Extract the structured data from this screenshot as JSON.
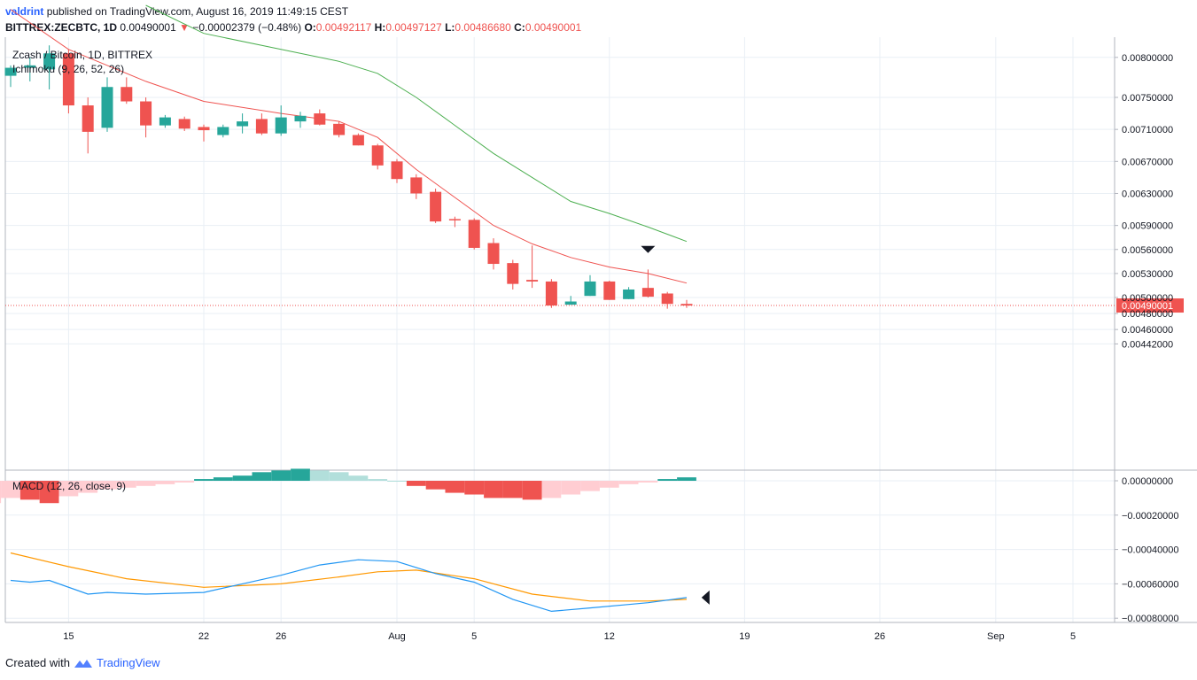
{
  "header": {
    "user": "valdrint",
    "published": "published on TradingView.com, August 16, 2019 11:49:15 CEST",
    "symbol": "BITTREX:ZECBTC, 1D",
    "last": "0.00490001",
    "change": "−0.00002379 (−0.48%)",
    "o_label": "O:",
    "o": "0.00492117",
    "h_label": "H:",
    "h": "0.00497127",
    "l_label": "L:",
    "l": "0.00486680",
    "c_label": "C:",
    "c": "0.00490001"
  },
  "footer": {
    "created": "Created with",
    "brand": "TradingView"
  },
  "colors": {
    "up": "#26a69a",
    "down": "#ef5350",
    "hist_up_strong": "#26a69a",
    "hist_up_weak": "#b2dfdb",
    "hist_down_strong": "#ef5350",
    "hist_down_weak": "#ffcdd2",
    "macd_line": "#2196f3",
    "signal_line": "#ff9800",
    "ichimoku_base": "#ef5350",
    "ichimoku_span": "#4caf50",
    "grid": "#e9eff5",
    "axis_text": "#131722",
    "price_tag": "#ef5350"
  },
  "chart_data": [
    {
      "type": "candlestick",
      "title": "Zcash / Bitcoin, 1D, BITTREX",
      "indicator_label": "Ichimoku (9, 26, 52, 26)",
      "last_price_label": "0.00490001",
      "last_price": 0.00490001,
      "y_ticks": [
        "0.00800000",
        "0.00750000",
        "0.00710000",
        "0.00670000",
        "0.00630000",
        "0.00590000",
        "0.00560000",
        "0.00530000",
        "0.00500000",
        "0.00480000",
        "0.00460000",
        "0.00442000"
      ],
      "y_tick_values": [
        0.008,
        0.0075,
        0.0071,
        0.0067,
        0.0063,
        0.0059,
        0.0056,
        0.0053,
        0.005,
        0.0048,
        0.0046,
        0.00442
      ],
      "x_ticks": [
        "15",
        "22",
        "26",
        "Aug",
        "5",
        "12",
        "19",
        "26",
        "Sep",
        "5"
      ],
      "x_tick_days": [
        15,
        22,
        26,
        32,
        36,
        43,
        50,
        57,
        63,
        67
      ],
      "first_day": 12,
      "candles": [
        {
          "d": 12,
          "o": 0.00777,
          "h": 0.0079,
          "l": 0.00763,
          "c": 0.00787
        },
        {
          "d": 13,
          "o": 0.00787,
          "h": 0.008,
          "l": 0.0077,
          "c": 0.0079
        },
        {
          "d": 14,
          "o": 0.00785,
          "h": 0.00815,
          "l": 0.0076,
          "c": 0.00805
        },
        {
          "d": 15,
          "o": 0.00805,
          "h": 0.0081,
          "l": 0.0073,
          "c": 0.0074
        },
        {
          "d": 16,
          "o": 0.0074,
          "h": 0.0075,
          "l": 0.0068,
          "c": 0.00707
        },
        {
          "d": 17,
          "o": 0.00712,
          "h": 0.00775,
          "l": 0.00707,
          "c": 0.00763
        },
        {
          "d": 18,
          "o": 0.00763,
          "h": 0.00775,
          "l": 0.00742,
          "c": 0.00745
        },
        {
          "d": 19,
          "o": 0.00745,
          "h": 0.0075,
          "l": 0.007,
          "c": 0.00715
        },
        {
          "d": 20,
          "o": 0.00715,
          "h": 0.00728,
          "l": 0.00712,
          "c": 0.00725
        },
        {
          "d": 21,
          "o": 0.00723,
          "h": 0.00726,
          "l": 0.00708,
          "c": 0.00711
        },
        {
          "d": 22,
          "o": 0.00713,
          "h": 0.00716,
          "l": 0.00695,
          "c": 0.00709
        },
        {
          "d": 23,
          "o": 0.00703,
          "h": 0.00716,
          "l": 0.007,
          "c": 0.00713
        },
        {
          "d": 24,
          "o": 0.00714,
          "h": 0.0073,
          "l": 0.00705,
          "c": 0.0072
        },
        {
          "d": 25,
          "o": 0.00723,
          "h": 0.0073,
          "l": 0.00703,
          "c": 0.00705
        },
        {
          "d": 26,
          "o": 0.00705,
          "h": 0.0074,
          "l": 0.00702,
          "c": 0.00725
        },
        {
          "d": 27,
          "o": 0.0072,
          "h": 0.00732,
          "l": 0.00712,
          "c": 0.00727
        },
        {
          "d": 28,
          "o": 0.0073,
          "h": 0.00735,
          "l": 0.00715,
          "c": 0.00716
        },
        {
          "d": 29,
          "o": 0.00717,
          "h": 0.0072,
          "l": 0.007,
          "c": 0.00703
        },
        {
          "d": 30,
          "o": 0.00703,
          "h": 0.00705,
          "l": 0.0069,
          "c": 0.0069
        },
        {
          "d": 31,
          "o": 0.0069,
          "h": 0.00692,
          "l": 0.0066,
          "c": 0.00665
        },
        {
          "d": 32,
          "o": 0.0067,
          "h": 0.00673,
          "l": 0.00643,
          "c": 0.00648
        },
        {
          "d": 33,
          "o": 0.0065,
          "h": 0.00654,
          "l": 0.00623,
          "c": 0.0063
        },
        {
          "d": 34,
          "o": 0.00632,
          "h": 0.00636,
          "l": 0.00593,
          "c": 0.00595
        },
        {
          "d": 35,
          "o": 0.00598,
          "h": 0.00601,
          "l": 0.00588,
          "c": 0.00597
        },
        {
          "d": 36,
          "o": 0.00597,
          "h": 0.00599,
          "l": 0.0056,
          "c": 0.00562
        },
        {
          "d": 37,
          "o": 0.00568,
          "h": 0.00574,
          "l": 0.00535,
          "c": 0.00542
        },
        {
          "d": 38,
          "o": 0.00543,
          "h": 0.00547,
          "l": 0.0051,
          "c": 0.00517
        },
        {
          "d": 39,
          "o": 0.00522,
          "h": 0.00565,
          "l": 0.00512,
          "c": 0.0052
        },
        {
          "d": 40,
          "o": 0.0052,
          "h": 0.00523,
          "l": 0.00487,
          "c": 0.0049
        },
        {
          "d": 41,
          "o": 0.00491,
          "h": 0.00502,
          "l": 0.00491,
          "c": 0.00495
        },
        {
          "d": 42,
          "o": 0.00502,
          "h": 0.00528,
          "l": 0.00502,
          "c": 0.0052
        },
        {
          "d": 43,
          "o": 0.0052,
          "h": 0.00521,
          "l": 0.00497,
          "c": 0.00497
        },
        {
          "d": 44,
          "o": 0.00498,
          "h": 0.00513,
          "l": 0.00498,
          "c": 0.0051
        },
        {
          "d": 45,
          "o": 0.00512,
          "h": 0.00535,
          "l": 0.005,
          "c": 0.00501
        },
        {
          "d": 46,
          "o": 0.00505,
          "h": 0.00507,
          "l": 0.00486,
          "c": 0.00492
        },
        {
          "d": 47,
          "o": 0.00492,
          "h": 0.00497,
          "l": 0.00487,
          "c": 0.0049
        }
      ],
      "ichimoku_base": [
        [
          12,
          0.0086
        ],
        [
          15,
          0.0081
        ],
        [
          19,
          0.0077
        ],
        [
          22,
          0.00745
        ],
        [
          26,
          0.0073
        ],
        [
          29,
          0.0072
        ],
        [
          31,
          0.007
        ],
        [
          33,
          0.0066
        ],
        [
          35,
          0.00625
        ],
        [
          37,
          0.0059
        ],
        [
          39,
          0.00567
        ],
        [
          41,
          0.0055
        ],
        [
          43,
          0.00538
        ],
        [
          45,
          0.0053
        ],
        [
          47,
          0.00518
        ]
      ],
      "ichimoku_span": [
        [
          19,
          0.00865
        ],
        [
          22,
          0.0083
        ],
        [
          26,
          0.0081
        ],
        [
          29,
          0.00795
        ],
        [
          31,
          0.0078
        ],
        [
          33,
          0.0075
        ],
        [
          35,
          0.00715
        ],
        [
          37,
          0.0068
        ],
        [
          39,
          0.0065
        ],
        [
          41,
          0.0062
        ],
        [
          43,
          0.00605
        ],
        [
          45,
          0.00588
        ],
        [
          47,
          0.0057
        ]
      ],
      "marker_day": 45,
      "marker_price": 0.0056
    },
    {
      "type": "macd",
      "title": "MACD (12, 26, close, 9)",
      "y_ticks": [
        "0.00000000",
        "−0.00020000",
        "−0.00040000",
        "−0.00060000",
        "−0.00080000"
      ],
      "y_tick_values": [
        0,
        -0.0002,
        -0.0004,
        -0.0006,
        -0.0008
      ],
      "histogram": [
        -0.00015,
        -0.00013,
        -0.0001,
        -0.00011,
        -0.00013,
        -9e-05,
        -7e-05,
        -5e-05,
        -4e-05,
        -3e-05,
        -2e-05,
        -1e-05,
        1e-05,
        2e-05,
        3e-05,
        5e-05,
        6e-05,
        7e-05,
        6e-05,
        5e-05,
        3e-05,
        1e-05,
        0,
        -3e-05,
        -5e-05,
        -7e-05,
        -8e-05,
        -0.0001,
        -0.0001,
        -0.00011,
        -0.0001,
        -8e-05,
        -6e-05,
        -4e-05,
        -2e-05,
        -1e-05,
        1e-05,
        2e-05
      ],
      "histogram_first_day": 10,
      "macd_line": [
        [
          12,
          -0.00058
        ],
        [
          13,
          -0.00059
        ],
        [
          14,
          -0.00058
        ],
        [
          16,
          -0.00066
        ],
        [
          17,
          -0.00065
        ],
        [
          19,
          -0.00066
        ],
        [
          22,
          -0.00065
        ],
        [
          24,
          -0.0006
        ],
        [
          26,
          -0.00055
        ],
        [
          28,
          -0.00049
        ],
        [
          30,
          -0.00046
        ],
        [
          32,
          -0.00047
        ],
        [
          34,
          -0.00054
        ],
        [
          36,
          -0.00059
        ],
        [
          38,
          -0.00069
        ],
        [
          40,
          -0.00076
        ],
        [
          42,
          -0.00074
        ],
        [
          44,
          -0.00072
        ],
        [
          45,
          -0.00071
        ],
        [
          47,
          -0.00068
        ]
      ],
      "signal_line": [
        [
          12,
          -0.00042
        ],
        [
          15,
          -0.0005
        ],
        [
          18,
          -0.00057
        ],
        [
          22,
          -0.00062
        ],
        [
          26,
          -0.0006
        ],
        [
          29,
          -0.00056
        ],
        [
          31,
          -0.00053
        ],
        [
          33,
          -0.00052
        ],
        [
          36,
          -0.00057
        ],
        [
          39,
          -0.00066
        ],
        [
          42,
          -0.0007
        ],
        [
          45,
          -0.0007
        ],
        [
          47,
          -0.00069
        ]
      ],
      "marker_day": 48,
      "marker_value": -0.00068
    }
  ]
}
